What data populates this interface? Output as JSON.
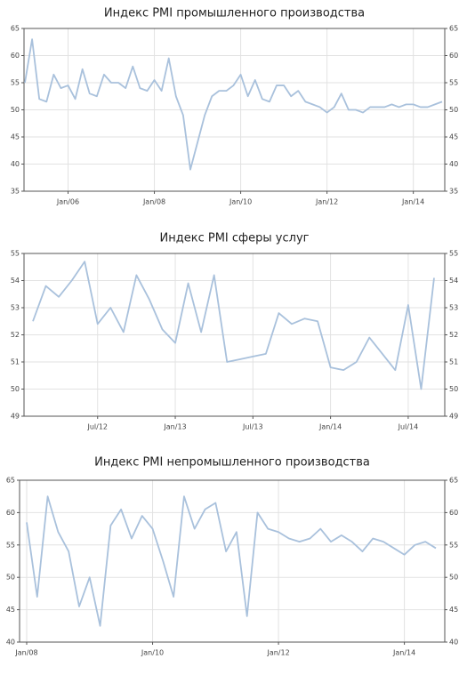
{
  "chart_data": [
    {
      "type": "line",
      "title": "Индекс PMI промышленного производства",
      "categories": [
        null,
        null,
        null,
        null,
        null,
        null,
        "Jan/06",
        null,
        null,
        null,
        null,
        null,
        null,
        null,
        null,
        null,
        null,
        null,
        "Jan/08",
        null,
        null,
        null,
        null,
        null,
        null,
        null,
        null,
        null,
        null,
        null,
        "Jan/10",
        null,
        null,
        null,
        null,
        null,
        null,
        null,
        null,
        null,
        null,
        null,
        "Jan/12",
        null,
        null,
        null,
        null,
        null,
        null,
        null,
        null,
        null,
        null,
        null,
        "Jan/14",
        null,
        null,
        null,
        null
      ],
      "series": [
        {
          "name": "PMI",
          "color": "#a9c1dc",
          "values": [
            55,
            63,
            52,
            51.5,
            56.5,
            54,
            54.5,
            52,
            57.5,
            53,
            52.5,
            56.5,
            55,
            55,
            54,
            58,
            54,
            53.5,
            55.5,
            53.5,
            59.5,
            52.5,
            49,
            39,
            44,
            49,
            52.5,
            53.5,
            53.5,
            54.5,
            56.5,
            52.5,
            55.5,
            52,
            51.5,
            54.5,
            54.5,
            52.5,
            53.5,
            51.5,
            51,
            50.5,
            49.5,
            50.5,
            53,
            50,
            50,
            49.5,
            50.5,
            50.5,
            50.5,
            51,
            50.5,
            51,
            51,
            50.5,
            50.5,
            51,
            51.5
          ]
        }
      ],
      "ylim": [
        35,
        65
      ],
      "yticks": [
        35,
        40,
        45,
        50,
        55,
        60,
        65
      ],
      "grid": true
    },
    {
      "type": "line",
      "title": "Индекс PMI сферы услуг",
      "categories": [
        null,
        null,
        null,
        null,
        null,
        "Jul/12",
        null,
        null,
        null,
        null,
        null,
        "Jan/13",
        null,
        null,
        null,
        null,
        null,
        "Jul/13",
        null,
        null,
        null,
        null,
        null,
        "Jan/14",
        null,
        null,
        null,
        null,
        null,
        "Jul/14",
        null,
        null
      ],
      "series": [
        {
          "name": "PMI",
          "color": "#a9c1dc",
          "values": [
            52.5,
            53.8,
            53.4,
            54.0,
            54.7,
            52.4,
            53.0,
            52.1,
            54.2,
            53.3,
            52.2,
            51.7,
            53.9,
            52.1,
            54.2,
            51.0,
            51.1,
            51.2,
            51.3,
            52.8,
            52.4,
            52.6,
            52.5,
            50.8,
            50.7,
            51.0,
            51.9,
            51.3,
            50.7,
            53.1,
            50.0,
            54.1
          ]
        }
      ],
      "ylim": [
        49,
        55
      ],
      "yticks": [
        49,
        50,
        51,
        52,
        53,
        54,
        55
      ],
      "grid": true
    },
    {
      "type": "line",
      "title": "Индекс PMI непромышленного производства",
      "categories": [
        "Jan/08",
        null,
        null,
        null,
        null,
        null,
        null,
        null,
        null,
        null,
        null,
        null,
        "Jan/10",
        null,
        null,
        null,
        null,
        null,
        null,
        null,
        null,
        null,
        null,
        null,
        "Jan/12",
        null,
        null,
        null,
        null,
        null,
        null,
        null,
        null,
        null,
        null,
        null,
        "Jan/14",
        null,
        null,
        null
      ],
      "series": [
        {
          "name": "PMI",
          "color": "#a9c1dc",
          "values": [
            58.5,
            47,
            62.5,
            57,
            54,
            45.5,
            50,
            42.5,
            58,
            60.5,
            56,
            59.5,
            57.5,
            52.5,
            47,
            62.5,
            57.5,
            60.5,
            61.5,
            54,
            57,
            44,
            60,
            57.5,
            57,
            56,
            55.5,
            56,
            57.5,
            55.5,
            56.5,
            55.5,
            54,
            56,
            55.5,
            54.5,
            53.5,
            55,
            55.5,
            54.5
          ]
        }
      ],
      "ylim": [
        40,
        65
      ],
      "yticks": [
        40,
        45,
        50,
        55,
        60,
        65
      ],
      "grid": true
    }
  ]
}
